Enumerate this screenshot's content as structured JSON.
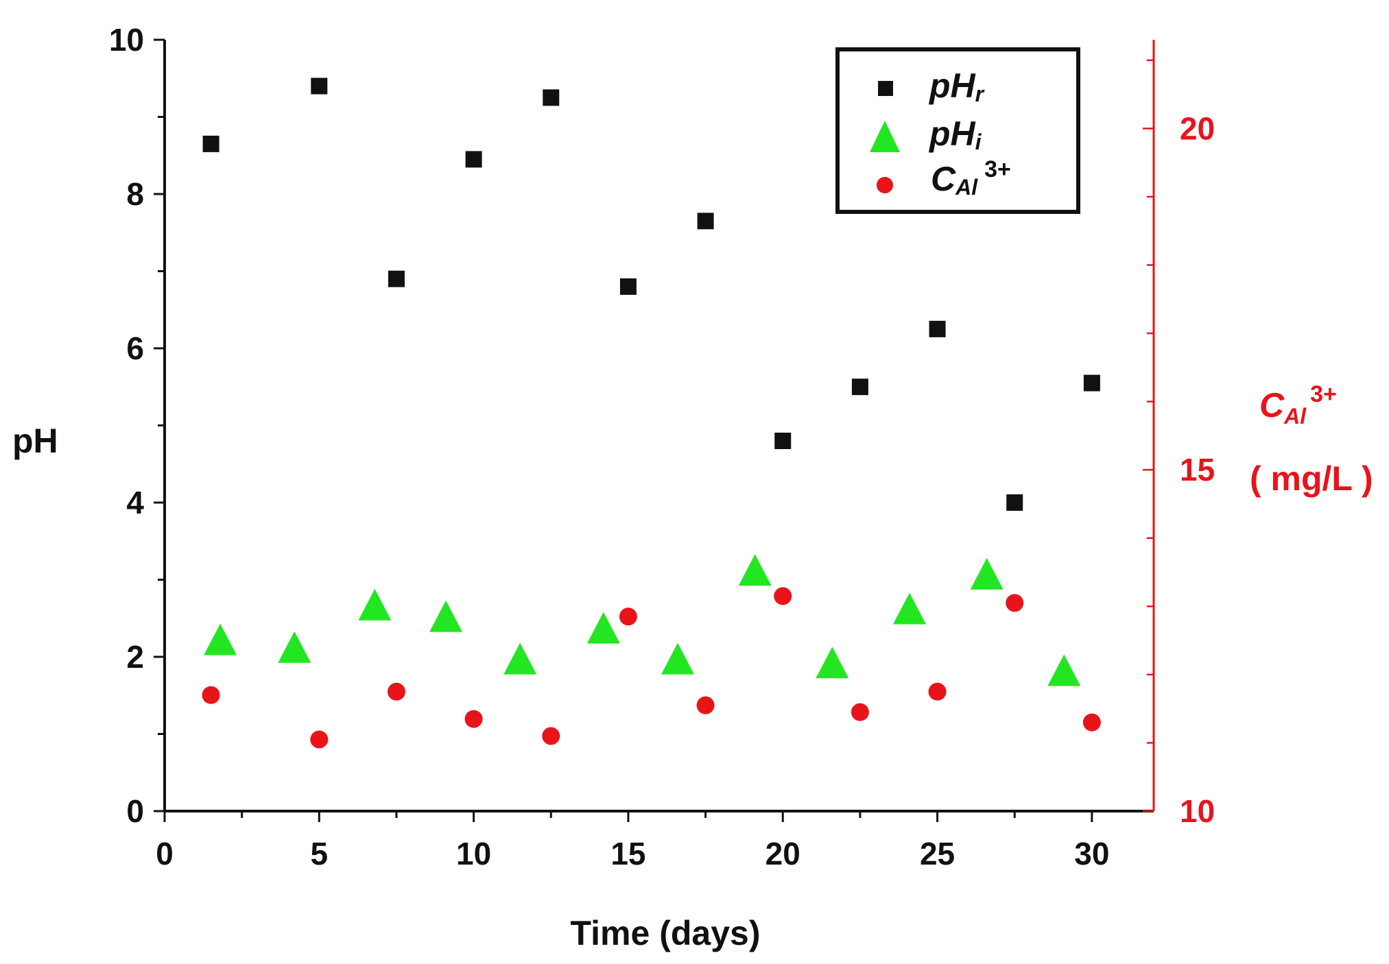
{
  "chart_data": {
    "type": "scatter",
    "title": "",
    "xlabel": "Time (days)",
    "ylabel": "pH",
    "y2label": {
      "main": "C",
      "sub": "Al",
      "sup": "3+",
      "units": "( mg/L )"
    },
    "xlim": [
      0,
      32
    ],
    "ylim": [
      0,
      10
    ],
    "y2lim": [
      10,
      21.3
    ],
    "x_ticks": [
      0,
      5,
      10,
      15,
      20,
      25,
      30
    ],
    "y_ticks": [
      0,
      2,
      4,
      6,
      8,
      10
    ],
    "y2_ticks": [
      10,
      15,
      20
    ],
    "x_tick_labels": [
      "0",
      "5",
      "10",
      "15",
      "20",
      "25",
      "30"
    ],
    "y_tick_labels": [
      "0",
      "2",
      "4",
      "6",
      "8",
      "10"
    ],
    "y2_tick_labels": [
      "10",
      "15",
      "20"
    ],
    "grid": false,
    "legend_position": "top-right",
    "series": [
      {
        "name": "pHr",
        "label": {
          "main": "pH",
          "sub": "r",
          "sup": ""
        },
        "axis": "left",
        "marker": "square",
        "color": "#111111",
        "x": [
          1.5,
          5,
          7.5,
          10,
          12.5,
          15,
          17.5,
          20,
          22.5,
          25,
          27.5,
          30
        ],
        "y": [
          8.65,
          9.4,
          6.9,
          8.45,
          9.25,
          6.8,
          7.65,
          4.8,
          5.5,
          6.25,
          4.0,
          5.55
        ]
      },
      {
        "name": "pHi",
        "label": {
          "main": "pH",
          "sub": "i",
          "sup": ""
        },
        "axis": "left",
        "marker": "triangle",
        "color": "#22e622",
        "x": [
          1.8,
          4.2,
          6.8,
          9.1,
          11.5,
          14.2,
          16.6,
          19.1,
          21.6,
          24.1,
          26.6,
          29.1
        ],
        "y": [
          2.2,
          2.1,
          2.65,
          2.5,
          1.95,
          2.35,
          1.95,
          3.1,
          1.9,
          2.6,
          3.05,
          1.8
        ]
      },
      {
        "name": "CAl3+",
        "label": {
          "main": "C",
          "sub": "Al",
          "sup": "3+"
        },
        "axis": "right",
        "marker": "circle",
        "color": "#e8141a",
        "x": [
          1.5,
          5,
          7.5,
          10,
          12.5,
          15,
          17.5,
          20,
          22.5,
          25,
          27.5,
          30
        ],
        "y": [
          11.7,
          11.05,
          11.75,
          11.35,
          11.1,
          12.85,
          11.55,
          13.15,
          11.45,
          11.75,
          13.05,
          11.3
        ]
      }
    ]
  }
}
